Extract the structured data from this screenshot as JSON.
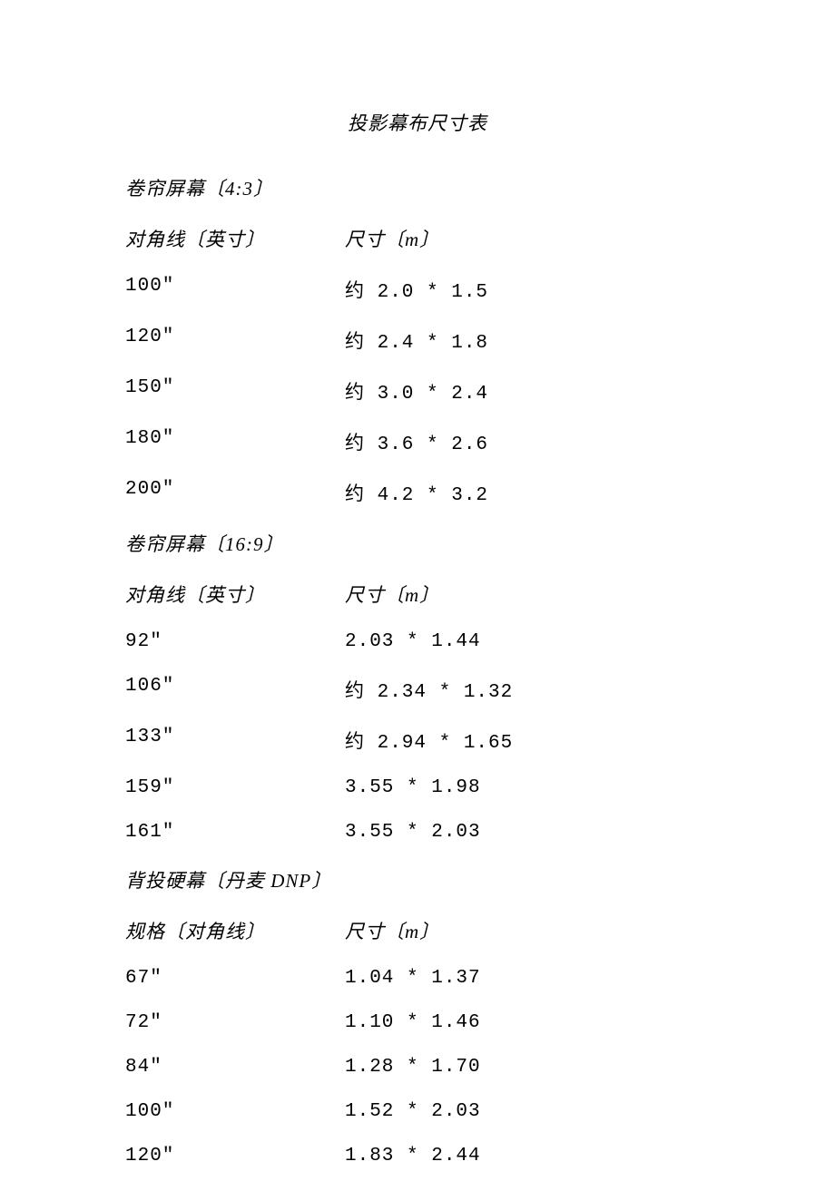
{
  "title": "投影幕布尺寸表",
  "sections": [
    {
      "header": "卷帘屏幕〔4:3〕",
      "col1_label": "对角线〔英寸〕",
      "col2_label": "尺寸〔m〕",
      "rows": [
        {
          "c1": "100\"",
          "c2": "约 2.0 * 1.5"
        },
        {
          "c1": "120\"",
          "c2": "约 2.4 * 1.8"
        },
        {
          "c1": "150\"",
          "c2": "约 3.0 * 2.4"
        },
        {
          "c1": "180\"",
          "c2": "约 3.6 * 2.6"
        },
        {
          "c1": "200\"",
          "c2": "约 4.2 * 3.2"
        }
      ]
    },
    {
      "header": "卷帘屏幕〔16:9〕",
      "col1_label": "对角线〔英寸〕",
      "col2_label": "尺寸〔m〕",
      "rows": [
        {
          "c1": "92\"",
          "c2": "2.03 * 1.44"
        },
        {
          "c1": "106\"",
          "c2": "约 2.34 * 1.32"
        },
        {
          "c1": "133\"",
          "c2": "约 2.94 * 1.65"
        },
        {
          "c1": "159\"",
          "c2": "3.55 * 1.98"
        },
        {
          "c1": "161\"",
          "c2": "3.55 * 2.03"
        }
      ]
    },
    {
      "header": "背投硬幕〔丹麦 DNP〕",
      "col1_label": "规格〔对角线〕",
      "col2_label": "尺寸〔m〕",
      "rows": [
        {
          "c1": "67\"",
          "c2": "1.04 * 1.37"
        },
        {
          "c1": "72\"",
          "c2": "1.10 * 1.46"
        },
        {
          "c1": "84\"",
          "c2": "1.28 * 1.70"
        },
        {
          "c1": "100\"",
          "c2": "1.52 * 2.03"
        },
        {
          "c1": "120\"",
          "c2": "1.83 * 2.44"
        }
      ]
    }
  ]
}
